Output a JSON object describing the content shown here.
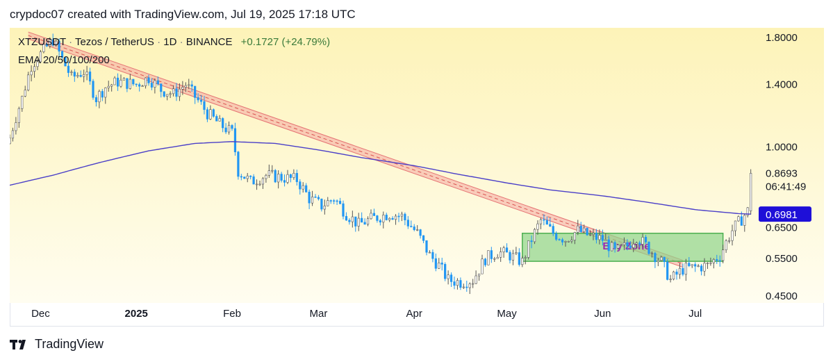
{
  "caption": "crypdoc07 created with TradingView.com, Jul 19, 2025 17:18 UTC",
  "legend": {
    "symbol": "XTZUSDT",
    "name": "Tezos / TetherUS",
    "interval": "1D",
    "exchange": "BINANCE",
    "change": "+0.1727 (+24.79%)",
    "indicator": "EMA 20/50/100/200"
  },
  "footer": {
    "brand": "TradingView"
  },
  "colors": {
    "up": "#ffffff",
    "down": "#2196f3",
    "ema": "#4a3fc8",
    "trend_band": "#f4a8a0",
    "zone_fill": "#8fd48a",
    "zone_border": "#4caf50",
    "zone_label": "#9c27b0",
    "ema_tag": "#1e0fd8",
    "bg_top": "#fdf3b8",
    "bg_bottom": "#fffdf0"
  },
  "chart_data": {
    "type": "candlestick",
    "symbol": "XTZUSDT",
    "interval": "1D",
    "y_axis": {
      "ticks": [
        "1.8000",
        "1.4000",
        "1.0000",
        "0.6500",
        "0.5500",
        "0.4500"
      ],
      "tick_values": [
        1.8,
        1.4,
        1.0,
        0.65,
        0.55,
        0.45
      ]
    },
    "x_axis": {
      "labels": [
        "Dec",
        "2025",
        "Feb",
        "Mar",
        "Apr",
        "May",
        "Jun",
        "Jul"
      ],
      "label_dates": [
        "2024-12-01",
        "2025-01-01",
        "2025-02-01",
        "2025-03-01",
        "2025-04-01",
        "2025-05-01",
        "2025-06-01",
        "2025-07-01"
      ],
      "range": [
        "2024-11-21",
        "2025-07-31"
      ]
    },
    "last_price": {
      "value": "0.8693",
      "countdown": "06:41:49"
    },
    "ema_last": "0.6981",
    "close_path": [
      [
        "2024-11-21",
        1.05
      ],
      [
        "2024-11-25",
        1.3
      ],
      [
        "2024-11-28",
        1.55
      ],
      [
        "2024-12-02",
        1.68
      ],
      [
        "2024-12-05",
        1.78
      ],
      [
        "2024-12-08",
        1.6
      ],
      [
        "2024-12-11",
        1.45
      ],
      [
        "2024-12-15",
        1.5
      ],
      [
        "2024-12-19",
        1.3
      ],
      [
        "2024-12-22",
        1.38
      ],
      [
        "2024-12-26",
        1.42
      ],
      [
        "2025-01-01",
        1.4
      ],
      [
        "2025-01-05",
        1.45
      ],
      [
        "2025-01-09",
        1.36
      ],
      [
        "2025-01-13",
        1.33
      ],
      [
        "2025-01-17",
        1.4
      ],
      [
        "2025-01-20",
        1.31
      ],
      [
        "2025-01-24",
        1.2
      ],
      [
        "2025-01-28",
        1.13
      ],
      [
        "2025-02-01",
        1.08
      ],
      [
        "2025-02-03",
        0.88
      ],
      [
        "2025-02-07",
        0.83
      ],
      [
        "2025-02-12",
        0.86
      ],
      [
        "2025-02-17",
        0.85
      ],
      [
        "2025-02-22",
        0.84
      ],
      [
        "2025-02-26",
        0.76
      ],
      [
        "2025-03-02",
        0.73
      ],
      [
        "2025-03-06",
        0.76
      ],
      [
        "2025-03-10",
        0.7
      ],
      [
        "2025-03-14",
        0.66
      ],
      [
        "2025-03-18",
        0.68
      ],
      [
        "2025-03-24",
        0.7
      ],
      [
        "2025-03-28",
        0.69
      ],
      [
        "2025-04-02",
        0.63
      ],
      [
        "2025-04-06",
        0.56
      ],
      [
        "2025-04-09",
        0.53
      ],
      [
        "2025-04-12",
        0.49
      ],
      [
        "2025-04-16",
        0.485
      ],
      [
        "2025-04-20",
        0.49
      ],
      [
        "2025-04-24",
        0.55
      ],
      [
        "2025-04-28",
        0.57
      ],
      [
        "2025-05-02",
        0.56
      ],
      [
        "2025-05-06",
        0.54
      ],
      [
        "2025-05-09",
        0.61
      ],
      [
        "2025-05-12",
        0.675
      ],
      [
        "2025-05-16",
        0.63
      ],
      [
        "2025-05-20",
        0.61
      ],
      [
        "2025-05-24",
        0.64
      ],
      [
        "2025-05-28",
        0.62
      ],
      [
        "2025-06-01",
        0.61
      ],
      [
        "2025-06-05",
        0.57
      ],
      [
        "2025-06-09",
        0.59
      ],
      [
        "2025-06-12",
        0.62
      ],
      [
        "2025-06-16",
        0.58
      ],
      [
        "2025-06-20",
        0.54
      ],
      [
        "2025-06-23",
        0.49
      ],
      [
        "2025-06-27",
        0.52
      ],
      [
        "2025-07-01",
        0.525
      ],
      [
        "2025-07-05",
        0.53
      ],
      [
        "2025-07-09",
        0.56
      ],
      [
        "2025-07-13",
        0.64
      ],
      [
        "2025-07-16",
        0.68
      ],
      [
        "2025-07-18",
        0.71
      ],
      [
        "2025-07-19",
        0.8693
      ]
    ],
    "ema200": [
      [
        "2024-11-21",
        0.815
      ],
      [
        "2024-12-05",
        0.86
      ],
      [
        "2024-12-20",
        0.92
      ],
      [
        "2025-01-05",
        0.98
      ],
      [
        "2025-01-20",
        1.02
      ],
      [
        "2025-02-01",
        1.03
      ],
      [
        "2025-02-15",
        1.02
      ],
      [
        "2025-03-01",
        0.985
      ],
      [
        "2025-03-15",
        0.945
      ],
      [
        "2025-04-01",
        0.905
      ],
      [
        "2025-04-15",
        0.865
      ],
      [
        "2025-05-01",
        0.825
      ],
      [
        "2025-05-15",
        0.795
      ],
      [
        "2025-06-01",
        0.77
      ],
      [
        "2025-06-15",
        0.745
      ],
      [
        "2025-07-01",
        0.715
      ],
      [
        "2025-07-15",
        0.7
      ],
      [
        "2025-07-19",
        0.6981
      ]
    ],
    "trendline": [
      [
        "2024-11-27",
        1.82
      ],
      [
        "2025-06-27",
        0.535
      ]
    ],
    "buy_zone": {
      "label": "Buy Zone",
      "from": "2025-05-06",
      "to": "2025-07-10",
      "low": 0.542,
      "high": 0.63
    }
  }
}
